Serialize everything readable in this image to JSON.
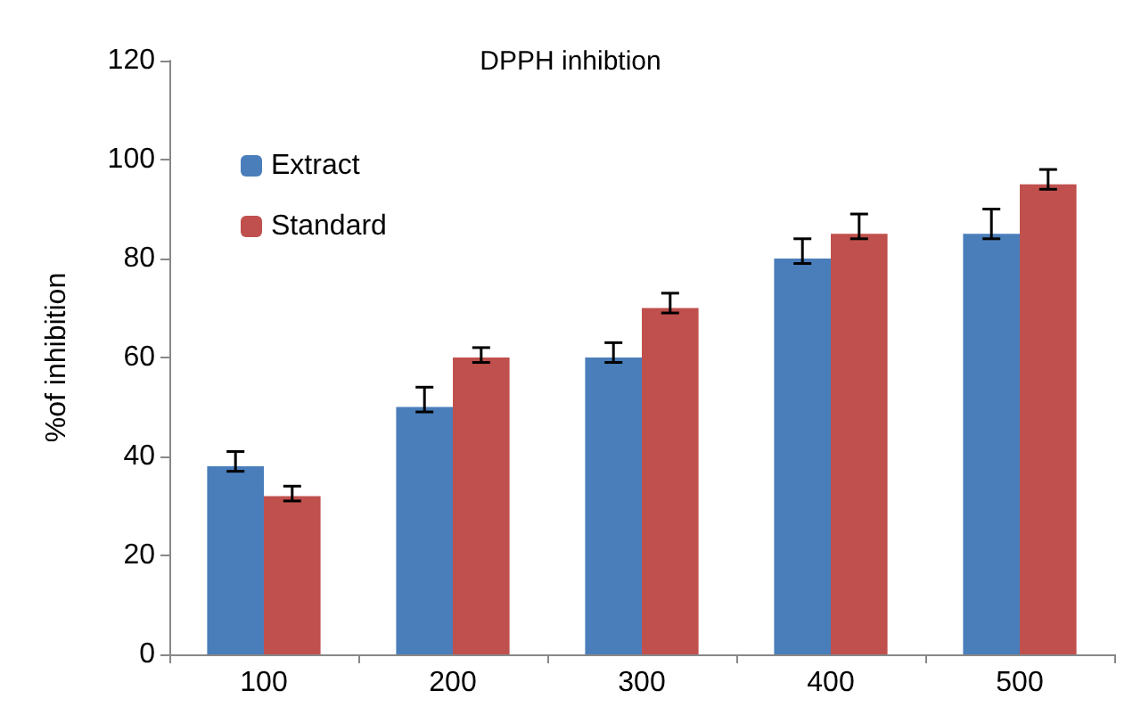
{
  "chart_data": {
    "type": "bar",
    "title": "DPPH inhibtion",
    "ylabel": "%of inhibition",
    "categories": [
      "100",
      "200",
      "300",
      "400",
      "500"
    ],
    "series": [
      {
        "name": "Extract",
        "color": "#4a7ebb",
        "values": [
          38,
          50,
          60,
          80,
          85
        ],
        "errors": [
          [
            37,
            41
          ],
          [
            49,
            54
          ],
          [
            59,
            63
          ],
          [
            79,
            84
          ],
          [
            84,
            90
          ]
        ]
      },
      {
        "name": "Standard",
        "color": "#c0504d",
        "values": [
          32,
          60,
          70,
          85,
          95
        ],
        "errors": [
          [
            31,
            34
          ],
          [
            59,
            62
          ],
          [
            69,
            73
          ],
          [
            84,
            89
          ],
          [
            94,
            98
          ]
        ]
      }
    ],
    "ylim": [
      0,
      120
    ],
    "yticks": [
      0,
      20,
      40,
      60,
      80,
      100,
      120
    ],
    "grid": false,
    "legend": "top left"
  }
}
